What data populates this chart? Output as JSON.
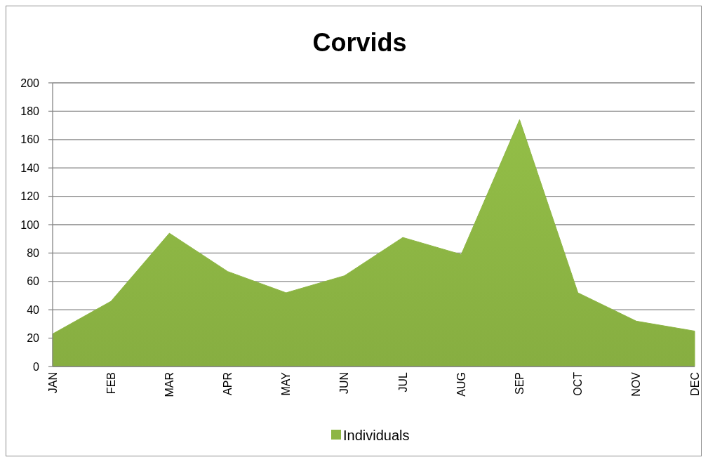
{
  "chart_data": {
    "type": "area",
    "title": "Corvids",
    "categories": [
      "JAN",
      "FEB",
      "MAR",
      "APR",
      "MAY",
      "JUN",
      "JUL",
      "AUG",
      "SEP",
      "OCT",
      "NOV",
      "DEC"
    ],
    "series": [
      {
        "name": "Individuals",
        "color": "#8db644",
        "values": [
          23,
          46,
          94,
          67,
          52,
          64,
          91,
          79,
          174,
          52,
          32,
          25
        ]
      }
    ],
    "ylim": [
      0,
      200
    ],
    "yticks": [
      0,
      20,
      40,
      60,
      80,
      100,
      120,
      140,
      160,
      180,
      200
    ],
    "grid": "y",
    "legend": "bottom"
  }
}
